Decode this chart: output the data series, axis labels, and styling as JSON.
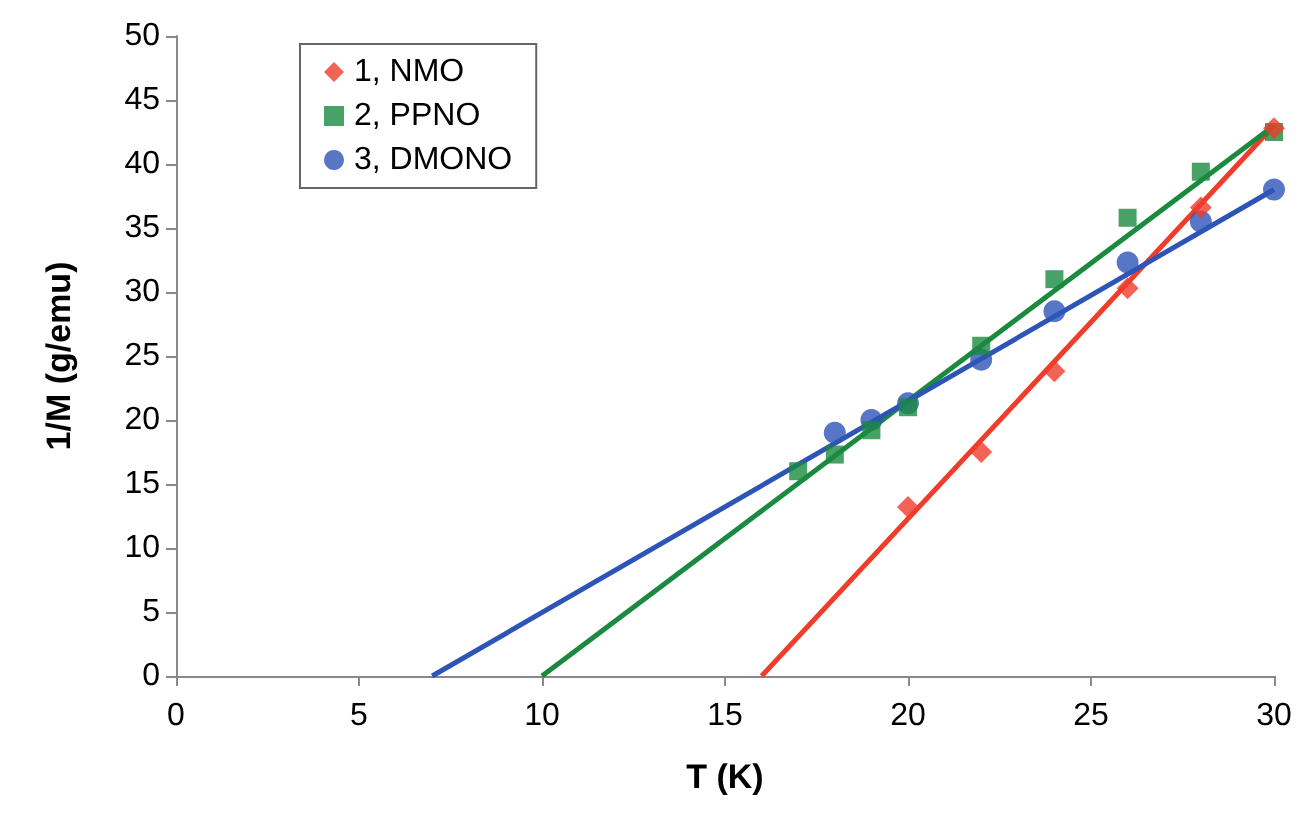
{
  "chart_data": {
    "type": "scatter",
    "xlabel": "T (K)",
    "ylabel": "1/M (g/emu)",
    "xlim": [
      0,
      30
    ],
    "xticks": [
      0,
      5,
      10,
      15,
      20,
      25,
      30
    ],
    "ylim": [
      0,
      50
    ],
    "yticks": [
      0,
      5,
      10,
      15,
      20,
      25,
      30,
      35,
      40,
      45,
      50
    ],
    "grid": false,
    "legend": "top left",
    "series": [
      {
        "name": "1, NMO",
        "color": "#f03c2a",
        "marker": "diamond",
        "x": [
          20,
          22,
          24,
          26,
          28,
          30
        ],
        "values": [
          13.2,
          17.5,
          23.8,
          30.3,
          36.6,
          42.8
        ]
      },
      {
        "name": "2, PPNO",
        "color": "#1a8a3e",
        "marker": "square",
        "x": [
          17,
          18,
          19,
          20,
          22,
          24,
          26,
          28,
          30
        ],
        "values": [
          16,
          17.3,
          19.2,
          21,
          25.8,
          31,
          35.8,
          39.4,
          42.5
        ]
      },
      {
        "name": "3, DMONO",
        "color": "#2d55b8",
        "marker": "circle",
        "x": [
          18,
          19,
          20,
          22,
          24,
          26,
          28,
          30
        ],
        "values": [
          19,
          20,
          21.3,
          24.7,
          28.5,
          32.3,
          35.5,
          38
        ]
      },
      {
        "type": "line",
        "color": "#f03c2a",
        "marker": "none",
        "x": [
          16,
          30
        ],
        "values": [
          0,
          43
        ]
      },
      {
        "type": "line",
        "color": "#1a8a3e",
        "marker": "none",
        "x": [
          10,
          30
        ],
        "values": [
          0,
          43
        ]
      },
      {
        "type": "line",
        "color": "#2d55b8",
        "marker": "none",
        "x": [
          7,
          30
        ],
        "values": [
          0,
          38
        ]
      }
    ]
  }
}
